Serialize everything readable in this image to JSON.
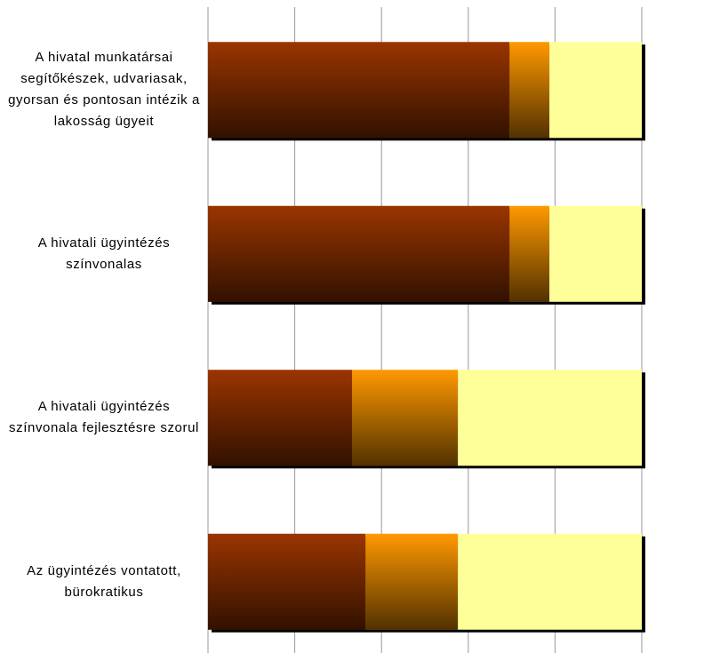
{
  "chart_data": {
    "type": "stacked-barh",
    "categories": [
      "A hivatal munkatársai segítőkészek, udvariasak, gyorsan és pontosan intézik a lakosság ügyeit",
      "A hivatali ügyintézés színvonalas",
      "A hivatali ügyintézés színvonala fejlesztésre szorul",
      "Az ügyintézés vontatott, bürokratikus"
    ],
    "series": [
      {
        "color": "#9a3500",
        "gradient": true,
        "values": [
          69.5,
          69.5,
          33.2,
          36.3
        ]
      },
      {
        "color": "#ff9900",
        "gradient": true,
        "values": [
          9.2,
          9.2,
          24.4,
          21.3
        ]
      },
      {
        "color": "#ffff99",
        "gradient": false,
        "values": [
          21.3,
          21.3,
          42.4,
          42.4
        ]
      }
    ],
    "xlim": [
      0,
      100
    ],
    "xticks": [
      0,
      20,
      40,
      60,
      80,
      100
    ],
    "grid": true
  }
}
